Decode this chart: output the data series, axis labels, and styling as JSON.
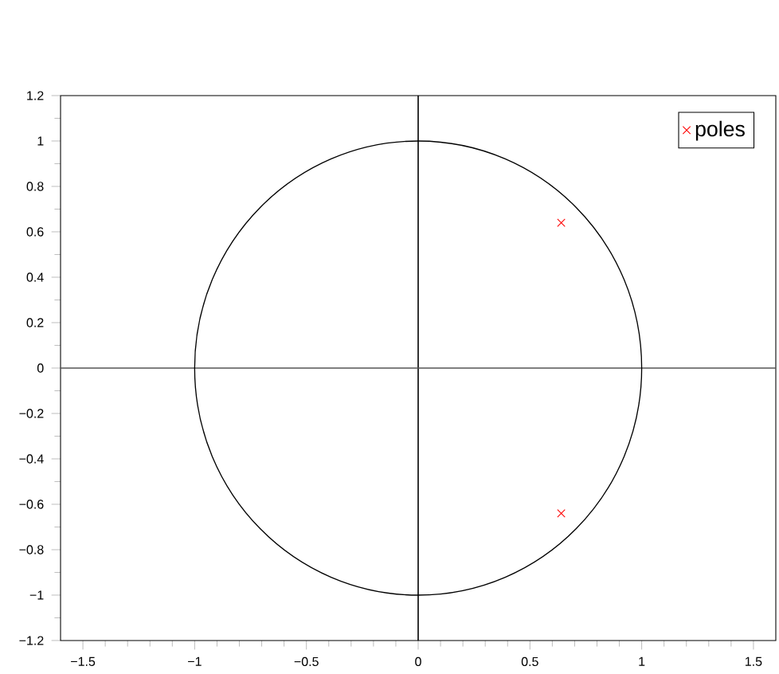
{
  "chart_data": {
    "type": "scatter",
    "xlim": [
      -1.6,
      1.6
    ],
    "ylim": [
      -1.2,
      1.2
    ],
    "xticks": [
      {
        "value": -1.5,
        "label": "−1.5"
      },
      {
        "value": -1,
        "label": "−1"
      },
      {
        "value": -0.5,
        "label": "−0.5"
      },
      0,
      0.5,
      1,
      1.5
    ],
    "yticks": [
      {
        "value": -1.2,
        "label": "−1.2"
      },
      {
        "value": -1,
        "label": "−1"
      },
      {
        "value": -0.8,
        "label": "−0.8"
      },
      {
        "value": -0.6,
        "label": "−0.6"
      },
      {
        "value": -0.4,
        "label": "−0.4"
      },
      {
        "value": -0.2,
        "label": "−0.2"
      },
      0,
      0.2,
      0.4,
      0.6,
      0.8,
      1,
      1.2
    ],
    "grid": false,
    "legend": "top right",
    "ref_lines": [
      {
        "axis": "x",
        "value": 0,
        "color": "#000000"
      },
      {
        "axis": "y",
        "value": 0,
        "color": "#555555"
      }
    ],
    "series": [
      {
        "name": "poles",
        "color": "#ff0000",
        "marker": "cross",
        "x": [
          0.64,
          0.64
        ],
        "values": [
          0.64,
          -0.64
        ]
      }
    ]
  }
}
